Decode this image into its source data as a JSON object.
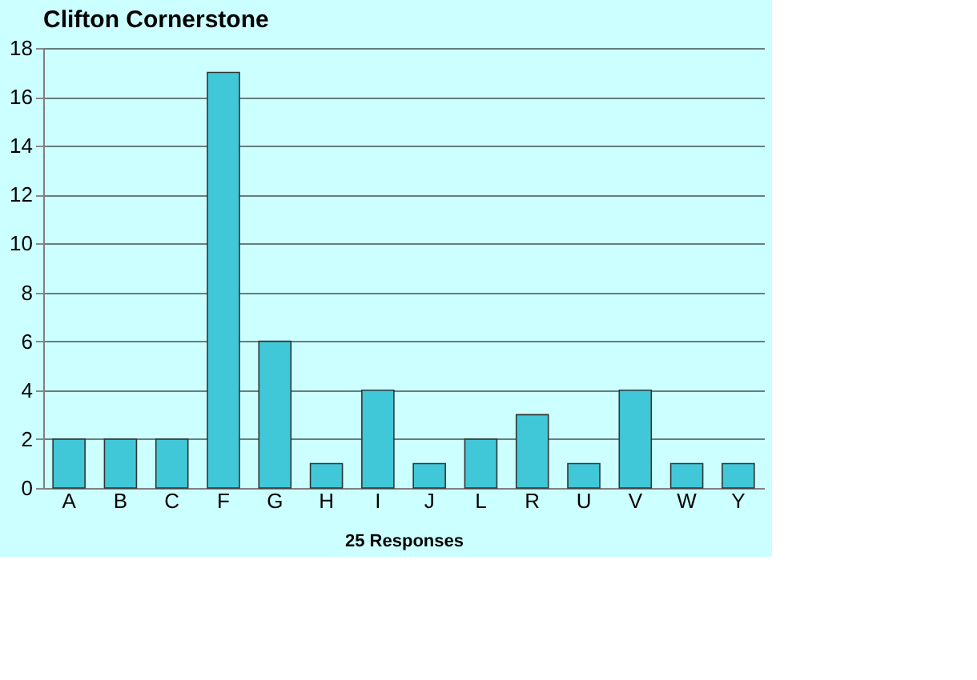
{
  "chart_data": {
    "type": "bar",
    "title": "Clifton Cornerstone",
    "xlabel": "25 Responses",
    "categories": [
      "A",
      "B",
      "C",
      "F",
      "G",
      "H",
      "I",
      "J",
      "L",
      "R",
      "U",
      "V",
      "W",
      "Y"
    ],
    "values": [
      2,
      2,
      2,
      17,
      6,
      1,
      4,
      1,
      2,
      3,
      1,
      4,
      1,
      1
    ],
    "color": "#40c8d8",
    "ylim": [
      0,
      18
    ],
    "yticks": [
      0,
      2,
      4,
      6,
      8,
      10,
      12,
      14,
      16,
      18
    ],
    "grid": "y"
  }
}
